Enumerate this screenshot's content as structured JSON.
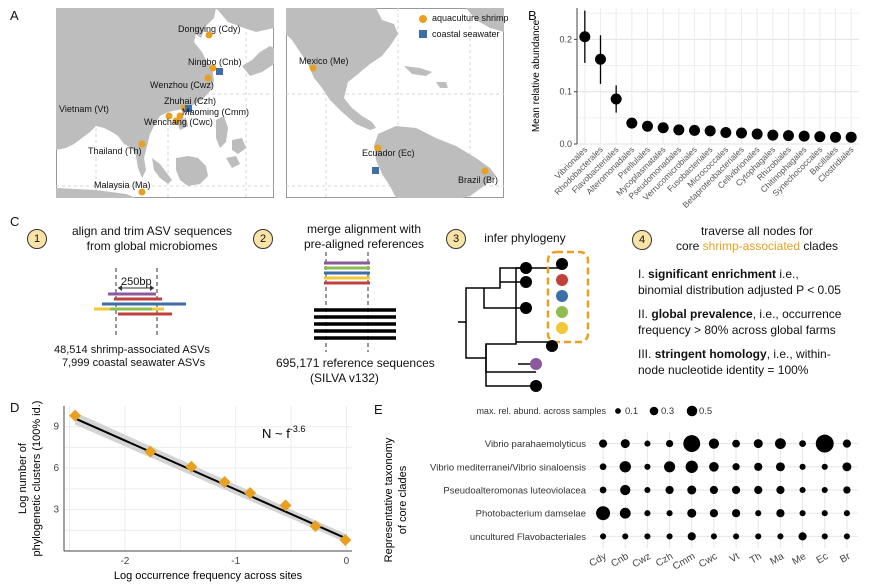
{
  "panels": {
    "a": "A",
    "b": "B",
    "c": "C",
    "d": "D",
    "e": "E"
  },
  "panel_a": {
    "legend": [
      {
        "label": "aquaculture shrimp",
        "color": "#e8a020",
        "shape": "circle"
      },
      {
        "label": "coastal seawater",
        "color": "#3e6ea8",
        "shape": "square"
      }
    ],
    "asia_sites": [
      "Dongying (Cdy)",
      "Ningbo (Cnb)",
      "Wenzhou (Cwz)",
      "Zhuhai (Czh)",
      "Vietnam (Vt)",
      "Maoming (Cmm)",
      "Wenchang (Cwc)",
      "Thailand (Th)",
      "Malaysia (Ma)"
    ],
    "america_sites": [
      "Mexico (Me)",
      "Ecuador (Ec)",
      "Brazil (Br)"
    ]
  },
  "panel_c": {
    "steps": [
      {
        "num": "1",
        "title_line1": "align and trim ASV sequences",
        "title_line2": "from global microbiomes"
      },
      {
        "num": "2",
        "title_line1": "merge alignment with",
        "title_line2": "pre-aligned references"
      },
      {
        "num": "3",
        "title_line1": "infer phylogeny",
        "title_line2": ""
      },
      {
        "num": "4",
        "title_line1": "traverse all nodes for",
        "title_line2_pre": "core ",
        "title_line2_hl": "shrimp-associated",
        "title_line2_post": " clades"
      }
    ],
    "bp_label": "250bp",
    "asv_line1": "48,514 shrimp-associated ASVs",
    "asv_line2": "7,999 coastal seawater ASVs",
    "ref_line1": "695,171 reference sequences",
    "ref_line2": "(SILVA v132)",
    "criteria": [
      {
        "num": "I.",
        "bold": "significant enrichment",
        "rest1": " i.e.,",
        "line2": "binomial distribution adjusted P < 0.05"
      },
      {
        "num": "II.",
        "bold": "global prevalence",
        "rest1": ", i.e., occurrence",
        "line2": "frequency > 80% across global farms"
      },
      {
        "num": "III.",
        "bold": "stringent homology",
        "rest1": ", i.e., within-",
        "line2": "node nucleotide identity = 100%"
      }
    ]
  },
  "chart_data": [
    {
      "type": "scatter",
      "panel": "B",
      "ylabel": "Mean relative abundance",
      "ylim": [
        0,
        0.26
      ],
      "yticks": [
        "0.0",
        "0.1",
        "0.2"
      ],
      "categories": [
        "Vibrionales",
        "Rhodobacterales",
        "Flavobacteriales",
        "Alteromonadales",
        "Pirellulales",
        "Mycoplasmatales",
        "Pseudomonadales",
        "Verrucomicrobiales",
        "Fusobacteriales",
        "Micrococcales",
        "Betaproteobacteriales",
        "Cellvibrionales",
        "Cytophagales",
        "Rhizobiales",
        "Chitinophagales",
        "Synechococcales",
        "Bacillales",
        "Clostridiales"
      ],
      "values": [
        0.205,
        0.162,
        0.086,
        0.04,
        0.034,
        0.031,
        0.027,
        0.026,
        0.025,
        0.022,
        0.021,
        0.019,
        0.017,
        0.016,
        0.015,
        0.014,
        0.013,
        0.013
      ],
      "err_low": [
        0.155,
        0.115,
        0.06,
        0.032,
        0.028,
        0.022,
        0.02,
        0.02,
        0.015,
        0.016,
        0.016,
        0.014,
        0.012,
        0.012,
        0.011,
        0.01,
        0.01,
        0.009
      ],
      "err_high": [
        0.255,
        0.208,
        0.112,
        0.048,
        0.04,
        0.04,
        0.034,
        0.033,
        0.035,
        0.028,
        0.026,
        0.024,
        0.022,
        0.02,
        0.019,
        0.018,
        0.016,
        0.017
      ]
    },
    {
      "type": "scatter",
      "panel": "D",
      "xlabel": "Log occurrence frequency across sites",
      "ylabel_line1": "Log number of",
      "ylabel_line2": "phylogenetic clusters (100% id.)",
      "annotation_base": "N ~ f",
      "annotation_exp": "-3.6",
      "xlim": [
        -2.55,
        0.05
      ],
      "ylim": [
        0,
        10.5
      ],
      "xticks": [
        "-2",
        "-1",
        "0"
      ],
      "yticks": [
        "3",
        "6",
        "9"
      ],
      "x": [
        -2.45,
        -1.77,
        -1.4,
        -1.1,
        -0.87,
        -0.55,
        -0.28,
        -0.01
      ],
      "y": [
        9.8,
        7.2,
        6.1,
        5.0,
        4.2,
        3.3,
        1.8,
        0.8
      ],
      "fit_line": [
        [
          -2.45,
          9.6
        ],
        [
          0.0,
          0.9
        ]
      ]
    },
    {
      "type": "bubble",
      "panel": "E",
      "ylabel_line1": "Representative taxonomy",
      "ylabel_line2": "of core clades",
      "size_legend_title": "max. rel. abund. across samples",
      "size_legend": [
        "0.1",
        "0.3",
        "0.5"
      ],
      "size_legend_values": [
        0.1,
        0.3,
        0.5
      ],
      "sites": [
        "Cdy",
        "Cnb",
        "Cwz",
        "Czh",
        "Cmm",
        "Cwc",
        "Vt",
        "Th",
        "Ma",
        "Me",
        "Ec",
        "Br"
      ],
      "clades": [
        "Vibrio parahaemolyticus",
        "Vibrio mediterranei/Vibrio sinaloensis",
        "Pseudoalteromonas luteoviolacea",
        "Photobacterium damselae",
        "uncultured Flavobacteriales"
      ],
      "values": [
        [
          0.06,
          0.08,
          0.02,
          0.04,
          0.45,
          0.12,
          0.05,
          0.08,
          0.14,
          0.03,
          0.52,
          0.06
        ],
        [
          0.03,
          0.16,
          0.02,
          0.15,
          0.2,
          0.1,
          0.04,
          0.06,
          0.08,
          0.02,
          0.02,
          0.08
        ],
        [
          0.03,
          0.12,
          0.02,
          0.06,
          0.08,
          0.06,
          0.06,
          0.06,
          0.06,
          0.02,
          0.02,
          0.04
        ],
        [
          0.28,
          0.14,
          0.02,
          0.02,
          0.08,
          0.06,
          0.06,
          0.02,
          0.06,
          0.02,
          0.02,
          0.02
        ],
        [
          0.02,
          0.02,
          0.02,
          0.02,
          0.06,
          0.02,
          0.02,
          0.02,
          0.02,
          0.06,
          0.02,
          0.02
        ]
      ]
    }
  ],
  "colors": {
    "orange": "#e8a020",
    "blue": "#3e6ea8",
    "purple": "#8b5a9e",
    "red": "#c0413b",
    "green": "#8fbc4f",
    "yellow": "#f0c838",
    "land": "#bdbdbd",
    "badge": "#fae3a6"
  }
}
